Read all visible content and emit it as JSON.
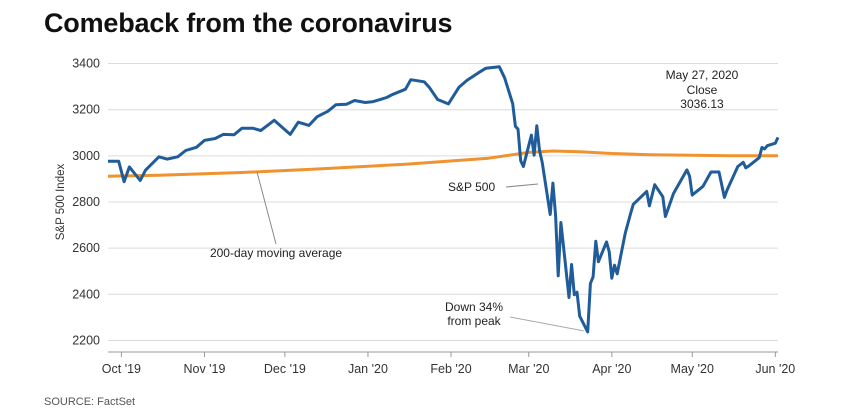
{
  "title": "Comeback from the coronavirus",
  "source": "SOURCE: FactSet",
  "chart_data": {
    "type": "line",
    "title": "Comeback from the coronavirus",
    "ylabel": "S&P 500 Index",
    "xlabel": "",
    "ylim": [
      2150,
      3450
    ],
    "yticks": [
      2200,
      2400,
      2600,
      2800,
      3000,
      3200,
      3400
    ],
    "grid": "horizontal",
    "x_range": [
      "2019-09-26",
      "2020-06-02"
    ],
    "xtick_labels": [
      {
        "date": "2019-10-01",
        "label": "Oct '19"
      },
      {
        "date": "2019-11-01",
        "label": "Nov '19"
      },
      {
        "date": "2019-12-01",
        "label": "Dec '19"
      },
      {
        "date": "2020-01-01",
        "label": "Jan '20"
      },
      {
        "date": "2020-02-01",
        "label": "Feb '20"
      },
      {
        "date": "2020-03-01",
        "label": "Mar '20"
      },
      {
        "date": "2020-04-01",
        "label": "Apr '20"
      },
      {
        "date": "2020-05-01",
        "label": "May '20"
      },
      {
        "date": "2020-06-01",
        "label": "Jun '20"
      }
    ],
    "series": [
      {
        "name": "S&P 500",
        "color": "#1f5c99",
        "points": [
          [
            "2019-09-26",
            2977
          ],
          [
            "2019-09-30",
            2977
          ],
          [
            "2019-10-02",
            2888
          ],
          [
            "2019-10-04",
            2952
          ],
          [
            "2019-10-08",
            2893
          ],
          [
            "2019-10-10",
            2938
          ],
          [
            "2019-10-15",
            2996
          ],
          [
            "2019-10-18",
            2986
          ],
          [
            "2019-10-22",
            2996
          ],
          [
            "2019-10-25",
            3023
          ],
          [
            "2019-10-29",
            3037
          ],
          [
            "2019-11-01",
            3067
          ],
          [
            "2019-11-05",
            3075
          ],
          [
            "2019-11-08",
            3093
          ],
          [
            "2019-11-12",
            3091
          ],
          [
            "2019-11-15",
            3120
          ],
          [
            "2019-11-19",
            3120
          ],
          [
            "2019-11-22",
            3110
          ],
          [
            "2019-11-27",
            3154
          ],
          [
            "2019-12-03",
            3093
          ],
          [
            "2019-12-06",
            3146
          ],
          [
            "2019-12-10",
            3132
          ],
          [
            "2019-12-13",
            3169
          ],
          [
            "2019-12-17",
            3193
          ],
          [
            "2019-12-20",
            3221
          ],
          [
            "2019-12-24",
            3224
          ],
          [
            "2019-12-27",
            3240
          ],
          [
            "2019-12-31",
            3231
          ],
          [
            "2020-01-03",
            3235
          ],
          [
            "2020-01-08",
            3253
          ],
          [
            "2020-01-10",
            3265
          ],
          [
            "2020-01-15",
            3289
          ],
          [
            "2020-01-17",
            3330
          ],
          [
            "2020-01-22",
            3321
          ],
          [
            "2020-01-24",
            3295
          ],
          [
            "2020-01-27",
            3244
          ],
          [
            "2020-01-31",
            3225
          ],
          [
            "2020-02-04",
            3298
          ],
          [
            "2020-02-07",
            3328
          ],
          [
            "2020-02-11",
            3358
          ],
          [
            "2020-02-14",
            3380
          ],
          [
            "2020-02-19",
            3386
          ],
          [
            "2020-02-21",
            3338
          ],
          [
            "2020-02-24",
            3226
          ],
          [
            "2020-02-25",
            3128
          ],
          [
            "2020-02-26",
            3116
          ],
          [
            "2020-02-27",
            2979
          ],
          [
            "2020-02-28",
            2954
          ],
          [
            "2020-03-02",
            3090
          ],
          [
            "2020-03-03",
            3003
          ],
          [
            "2020-03-04",
            3130
          ],
          [
            "2020-03-05",
            3023
          ],
          [
            "2020-03-06",
            2972
          ],
          [
            "2020-03-09",
            2746
          ],
          [
            "2020-03-10",
            2882
          ],
          [
            "2020-03-11",
            2741
          ],
          [
            "2020-03-12",
            2480
          ],
          [
            "2020-03-13",
            2711
          ],
          [
            "2020-03-16",
            2386
          ],
          [
            "2020-03-17",
            2529
          ],
          [
            "2020-03-18",
            2398
          ],
          [
            "2020-03-19",
            2409
          ],
          [
            "2020-03-20",
            2305
          ],
          [
            "2020-03-23",
            2237
          ],
          [
            "2020-03-24",
            2447
          ],
          [
            "2020-03-25",
            2476
          ],
          [
            "2020-03-26",
            2630
          ],
          [
            "2020-03-27",
            2541
          ],
          [
            "2020-03-30",
            2627
          ],
          [
            "2020-03-31",
            2585
          ],
          [
            "2020-04-01",
            2470
          ],
          [
            "2020-04-02",
            2526
          ],
          [
            "2020-04-03",
            2489
          ],
          [
            "2020-04-06",
            2664
          ],
          [
            "2020-04-08",
            2750
          ],
          [
            "2020-04-09",
            2790
          ],
          [
            "2020-04-14",
            2846
          ],
          [
            "2020-04-15",
            2783
          ],
          [
            "2020-04-17",
            2875
          ],
          [
            "2020-04-20",
            2823
          ],
          [
            "2020-04-21",
            2737
          ],
          [
            "2020-04-24",
            2837
          ],
          [
            "2020-04-29",
            2939
          ],
          [
            "2020-04-30",
            2912
          ],
          [
            "2020-05-01",
            2830
          ],
          [
            "2020-05-05",
            2868
          ],
          [
            "2020-05-08",
            2930
          ],
          [
            "2020-05-11",
            2930
          ],
          [
            "2020-05-13",
            2820
          ],
          [
            "2020-05-14",
            2852
          ],
          [
            "2020-05-18",
            2954
          ],
          [
            "2020-05-20",
            2972
          ],
          [
            "2020-05-21",
            2948
          ],
          [
            "2020-05-22",
            2955
          ],
          [
            "2020-05-26",
            2992
          ],
          [
            "2020-05-27",
            3036
          ],
          [
            "2020-05-28",
            3030
          ],
          [
            "2020-05-29",
            3044
          ],
          [
            "2020-06-01",
            3055
          ],
          [
            "2020-06-02",
            3080
          ]
        ]
      },
      {
        "name": "200-day moving average",
        "color": "#f0922e",
        "points": [
          [
            "2019-09-26",
            2912
          ],
          [
            "2019-10-15",
            2916
          ],
          [
            "2019-11-15",
            2928
          ],
          [
            "2019-12-15",
            2944
          ],
          [
            "2020-01-15",
            2964
          ],
          [
            "2020-02-15",
            2990
          ],
          [
            "2020-03-01",
            3015
          ],
          [
            "2020-03-10",
            3021
          ],
          [
            "2020-03-20",
            3018
          ],
          [
            "2020-04-01",
            3010
          ],
          [
            "2020-04-15",
            3005
          ],
          [
            "2020-05-01",
            3003
          ],
          [
            "2020-05-15",
            3000
          ],
          [
            "2020-06-02",
            3000
          ]
        ]
      }
    ],
    "annotations": {
      "close": {
        "date": "May 27, 2020",
        "word": "Close",
        "value": "3036.13"
      },
      "sp500_label": "S&P 500",
      "ma_label": "200-day moving average",
      "trough_line1": "Down 34%",
      "trough_line2": "from peak"
    }
  }
}
